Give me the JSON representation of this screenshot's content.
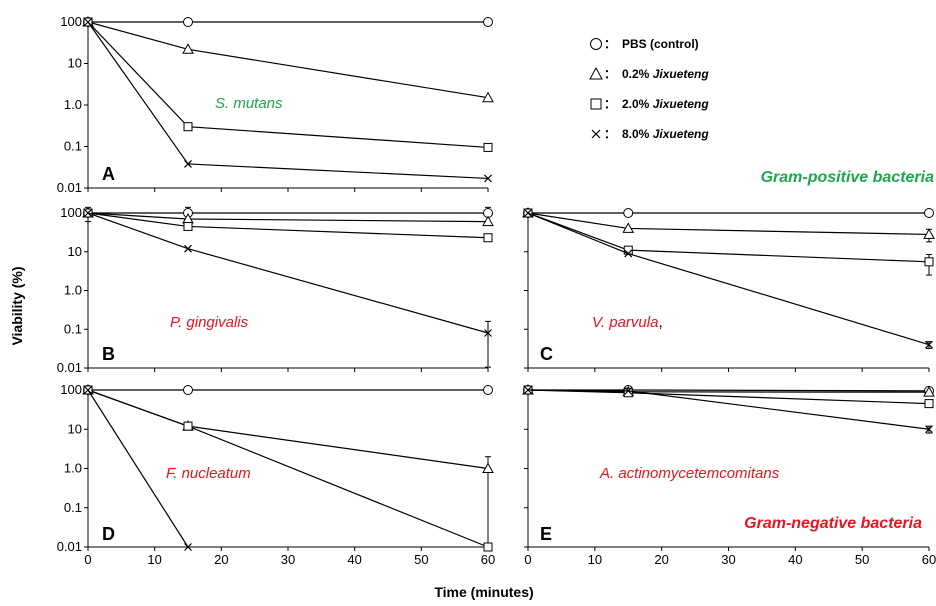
{
  "figure": {
    "ylabel": "Viability  (%)",
    "xlabel": "Time (minutes)",
    "legend": [
      {
        "symbol": "circle",
        "sep": "：",
        "prefix": "PBS",
        "name": "(control)"
      },
      {
        "symbol": "triangle",
        "sep": "：",
        "prefix": "0.2%",
        "name": "Jixueteng"
      },
      {
        "symbol": "square",
        "sep": "：",
        "prefix": "2.0%",
        "name": "Jixueteng"
      },
      {
        "symbol": "cross",
        "sep": "：",
        "prefix": "8.0%",
        "name": "Jixueteng"
      }
    ],
    "group_labels": {
      "positive": "Gram-positive bacteria",
      "negative": "Gram-negative  bacteria"
    },
    "colors": {
      "positive": "#1aa84a",
      "negative": "#e8141c",
      "axis": "#000000"
    }
  },
  "chart_data": [
    {
      "type": "line",
      "panel": "A",
      "species": "S. mutans",
      "species_color": "#1aa84a",
      "x": [
        0,
        15,
        60
      ],
      "xlim": [
        0,
        60
      ],
      "ylim": [
        0.01,
        100
      ],
      "yscale": "log",
      "yticks": [
        "100",
        "10",
        "1.0",
        "0.1",
        "0.01"
      ],
      "xticks": [],
      "series": [
        {
          "symbol": "circle",
          "values": [
            100,
            100,
            100
          ]
        },
        {
          "symbol": "triangle",
          "values": [
            100,
            22,
            1.5
          ]
        },
        {
          "symbol": "square",
          "values": [
            100,
            0.3,
            0.095
          ]
        },
        {
          "symbol": "cross",
          "values": [
            100,
            0.038,
            0.017
          ]
        }
      ]
    },
    {
      "type": "line",
      "panel": "B",
      "species": "P. gingivalis",
      "species_color": "#e8141c",
      "x": [
        0,
        15,
        60
      ],
      "xlim": [
        0,
        60
      ],
      "ylim": [
        0.01,
        100
      ],
      "yscale": "log",
      "yticks": [
        "100",
        "10",
        "1.0",
        "0.1",
        "0.01"
      ],
      "xticks": [],
      "series": [
        {
          "symbol": "circle",
          "values": [
            100,
            100,
            100
          ],
          "err": [
            40,
            40,
            40
          ]
        },
        {
          "symbol": "triangle",
          "values": [
            100,
            70,
            60
          ]
        },
        {
          "symbol": "square",
          "values": [
            100,
            45,
            23
          ]
        },
        {
          "symbol": "cross",
          "values": [
            100,
            12,
            0.08
          ],
          "err": [
            0,
            0,
            0.08
          ]
        }
      ]
    },
    {
      "type": "line",
      "panel": "C",
      "species": "V. parvula",
      "species_suffix": ",",
      "species_color": "#e8141c",
      "x": [
        0,
        15,
        60
      ],
      "xlim": [
        0,
        60
      ],
      "ylim": [
        0.01,
        100
      ],
      "yscale": "log",
      "yticks": [],
      "xticks": [],
      "series": [
        {
          "symbol": "circle",
          "values": [
            100,
            100,
            100
          ],
          "err": [
            0,
            0,
            15
          ]
        },
        {
          "symbol": "triangle",
          "values": [
            100,
            40,
            28
          ],
          "err": [
            0,
            0,
            10
          ]
        },
        {
          "symbol": "square",
          "values": [
            100,
            11,
            5.5
          ],
          "err": [
            0,
            0,
            3
          ]
        },
        {
          "symbol": "cross",
          "values": [
            100,
            9,
            0.04
          ],
          "err": [
            0,
            0,
            0.008
          ]
        }
      ]
    },
    {
      "type": "line",
      "panel": "D",
      "species": "F. nucleatum",
      "species_color": "#e8141c",
      "x": [
        0,
        15,
        60
      ],
      "xlim": [
        0,
        60
      ],
      "ylim": [
        0.01,
        100
      ],
      "yscale": "log",
      "yticks": [
        "100",
        "10",
        "1.0",
        "0.1",
        "0.01"
      ],
      "xticks": [
        "0",
        "10",
        "20",
        "30",
        "40",
        "50",
        "60"
      ],
      "series": [
        {
          "symbol": "circle",
          "values": [
            100,
            100,
            100
          ]
        },
        {
          "symbol": "triangle",
          "values": [
            100,
            12,
            1.0
          ],
          "err": [
            0,
            0,
            1.0
          ]
        },
        {
          "symbol": "square",
          "values": [
            100,
            12,
            0.01
          ]
        },
        {
          "symbol": "cross",
          "x": [
            0,
            15
          ],
          "values": [
            100,
            0.01
          ]
        }
      ]
    },
    {
      "type": "line",
      "panel": "E",
      "species": "A. actinomycetemcomitans",
      "species_color": "#e8141c",
      "x": [
        0,
        15,
        60
      ],
      "xlim": [
        0,
        60
      ],
      "ylim": [
        0.01,
        100
      ],
      "yscale": "log",
      "yticks": [],
      "xticks": [
        "0",
        "10",
        "20",
        "30",
        "40",
        "50",
        "60"
      ],
      "series": [
        {
          "symbol": "circle",
          "values": [
            100,
            100,
            95
          ]
        },
        {
          "symbol": "triangle",
          "values": [
            100,
            90,
            88
          ]
        },
        {
          "symbol": "square",
          "values": [
            100,
            85,
            45
          ]
        },
        {
          "symbol": "cross",
          "values": [
            100,
            95,
            10
          ],
          "err": [
            0,
            0,
            2
          ]
        }
      ]
    }
  ]
}
